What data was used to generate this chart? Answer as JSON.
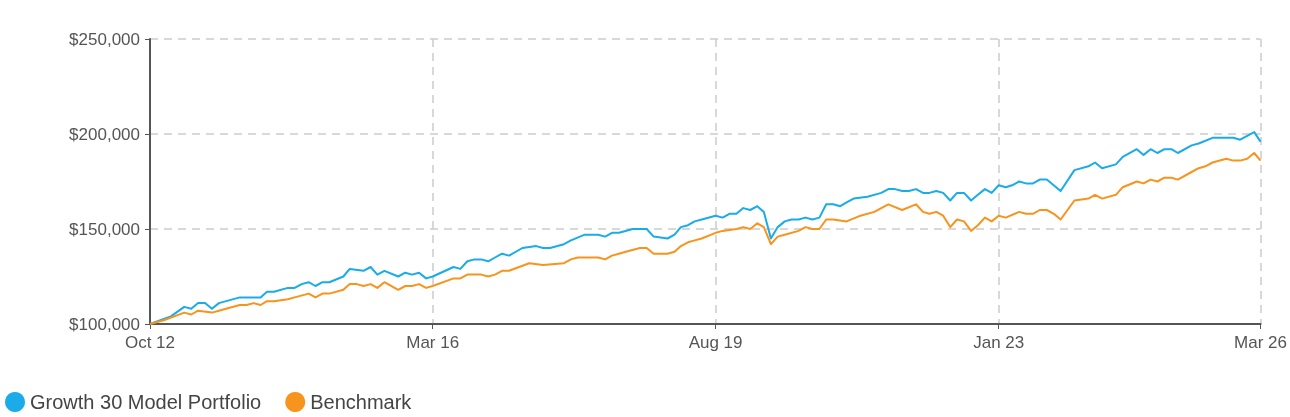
{
  "chart_data": {
    "type": "line",
    "xlim": [
      "2012-10",
      "2026-03"
    ],
    "xticks": [
      {
        "value": "2012-10",
        "label": "Oct 12"
      },
      {
        "value": "2016-03",
        "label": "Mar 16"
      },
      {
        "value": "2019-08",
        "label": "Aug 19"
      },
      {
        "value": "2023-01",
        "label": "Jan 23"
      },
      {
        "value": "2026-03",
        "label": "Mar 26"
      }
    ],
    "ylim": [
      100000,
      250000
    ],
    "yticks": [
      {
        "value": 100000,
        "label": "$100,000"
      },
      {
        "value": 150000,
        "label": "$150,000"
      },
      {
        "value": 200000,
        "label": "$200,000"
      },
      {
        "value": 250000,
        "label": "$250,000"
      }
    ],
    "grid": true,
    "legend": "bottom left",
    "marker": "none",
    "line_style": "solid",
    "series": [
      {
        "name": "Growth 30 Model Portfolio",
        "color": "#1aabe8",
        "x": [
          "2012-10",
          "2013-01",
          "2013-03",
          "2013-04",
          "2013-05",
          "2013-06",
          "2013-07",
          "2013-08",
          "2013-11",
          "2014-02",
          "2014-03",
          "2014-04",
          "2014-06",
          "2014-07",
          "2014-08",
          "2014-09",
          "2014-10",
          "2014-11",
          "2014-12",
          "2015-02",
          "2015-03",
          "2015-05",
          "2015-06",
          "2015-07",
          "2015-08",
          "2015-10",
          "2015-11",
          "2015-12",
          "2016-01",
          "2016-02",
          "2016-03",
          "2016-06",
          "2016-07",
          "2016-08",
          "2016-09",
          "2016-10",
          "2016-11",
          "2016-12",
          "2017-01",
          "2017-02",
          "2017-04",
          "2017-06",
          "2017-07",
          "2017-08",
          "2017-10",
          "2017-11",
          "2018-01",
          "2018-03",
          "2018-04",
          "2018-05",
          "2018-06",
          "2018-08",
          "2018-10",
          "2018-11",
          "2019-01",
          "2019-02",
          "2019-03",
          "2019-04",
          "2019-05",
          "2019-06",
          "2019-08",
          "2019-09",
          "2019-10",
          "2019-11",
          "2019-12",
          "2020-01",
          "2020-02",
          "2020-03",
          "2020-04",
          "2020-05",
          "2020-06",
          "2020-07",
          "2020-08",
          "2020-09",
          "2020-10",
          "2020-11",
          "2020-12",
          "2021-01",
          "2021-02",
          "2021-03",
          "2021-04",
          "2021-06",
          "2021-08",
          "2021-09",
          "2021-10",
          "2021-11",
          "2021-12",
          "2022-01",
          "2022-02",
          "2022-03",
          "2022-04",
          "2022-05",
          "2022-06",
          "2022-07",
          "2022-08",
          "2022-09",
          "2022-10",
          "2022-11",
          "2022-12",
          "2023-01",
          "2023-02",
          "2023-03",
          "2023-04",
          "2023-05",
          "2023-06",
          "2023-07",
          "2023-08",
          "2023-10",
          "2023-12",
          "2024-02",
          "2024-03",
          "2024-04",
          "2024-06",
          "2024-07",
          "2024-09",
          "2024-10",
          "2024-11",
          "2024-12",
          "2025-01",
          "2025-02",
          "2025-03",
          "2025-05",
          "2025-06",
          "2025-08",
          "2025-09",
          "2025-10",
          "2025-11",
          "2025-12",
          "2026-02",
          "2026-03"
        ],
        "values": [
          100000,
          104000,
          109000,
          108000,
          111000,
          111000,
          108000,
          111000,
          114000,
          114000,
          117000,
          117000,
          119000,
          119000,
          121000,
          122000,
          120000,
          122000,
          122000,
          125000,
          129000,
          128000,
          130000,
          126000,
          128000,
          125000,
          127000,
          126000,
          127000,
          124000,
          125000,
          130000,
          129000,
          133000,
          134000,
          134000,
          133000,
          135000,
          137000,
          136000,
          140000,
          141000,
          140000,
          140000,
          142000,
          144000,
          147000,
          147000,
          146000,
          148000,
          148000,
          150000,
          150000,
          146000,
          145000,
          147000,
          151000,
          152000,
          154000,
          155000,
          157000,
          156000,
          158000,
          158000,
          161000,
          160000,
          162000,
          159000,
          145000,
          151000,
          154000,
          155000,
          155000,
          156000,
          155000,
          156000,
          163000,
          163000,
          162000,
          164000,
          166000,
          167000,
          169000,
          171000,
          171000,
          170000,
          170000,
          171000,
          169000,
          169000,
          170000,
          169000,
          165000,
          169000,
          169000,
          165000,
          168000,
          171000,
          169000,
          173000,
          172000,
          173000,
          175000,
          174000,
          174000,
          176000,
          176000,
          170000,
          181000,
          183000,
          185000,
          182000,
          184000,
          188000,
          192000,
          189000,
          192000,
          190000,
          192000,
          192000,
          190000,
          194000,
          195000,
          198000,
          198000,
          198000,
          198000,
          197000,
          201000,
          196000
        ]
      },
      {
        "name": "Benchmark",
        "color": "#f7941d",
        "x": [
          "2012-10",
          "2012-12",
          "2013-03",
          "2013-04",
          "2013-05",
          "2013-07",
          "2013-08",
          "2013-09",
          "2013-11",
          "2013-12",
          "2014-01",
          "2014-02",
          "2014-03",
          "2014-04",
          "2014-06",
          "2014-07",
          "2014-09",
          "2014-10",
          "2014-11",
          "2014-12",
          "2015-02",
          "2015-03",
          "2015-04",
          "2015-05",
          "2015-06",
          "2015-07",
          "2015-08",
          "2015-10",
          "2015-11",
          "2015-12",
          "2016-01",
          "2016-02",
          "2016-03",
          "2016-06",
          "2016-07",
          "2016-08",
          "2016-10",
          "2016-11",
          "2016-12",
          "2017-01",
          "2017-02",
          "2017-05",
          "2017-07",
          "2017-10",
          "2017-11",
          "2017-12",
          "2018-03",
          "2018-04",
          "2018-05",
          "2018-06",
          "2018-07",
          "2018-09",
          "2018-10",
          "2018-11",
          "2018-12",
          "2019-01",
          "2019-02",
          "2019-03",
          "2019-04",
          "2019-05",
          "2019-06",
          "2019-08",
          "2019-09",
          "2019-11",
          "2019-12",
          "2020-01",
          "2020-02",
          "2020-03",
          "2020-04",
          "2020-05",
          "2020-06",
          "2020-08",
          "2020-09",
          "2020-10",
          "2020-11",
          "2020-12",
          "2021-01",
          "2021-03",
          "2021-05",
          "2021-07",
          "2021-09",
          "2021-11",
          "2022-01",
          "2022-02",
          "2022-03",
          "2022-04",
          "2022-05",
          "2022-06",
          "2022-07",
          "2022-08",
          "2022-09",
          "2022-10",
          "2022-11",
          "2022-12",
          "2023-01",
          "2023-02",
          "2023-04",
          "2023-05",
          "2023-06",
          "2023-07",
          "2023-08",
          "2023-09",
          "2023-10",
          "2023-12",
          "2024-02",
          "2024-03",
          "2024-04",
          "2024-06",
          "2024-07",
          "2024-09",
          "2024-10",
          "2024-11",
          "2024-12",
          "2025-01",
          "2025-02",
          "2025-03",
          "2025-05",
          "2025-06",
          "2025-07",
          "2025-08",
          "2025-10",
          "2025-11",
          "2025-12",
          "2026-01",
          "2026-02",
          "2026-03"
        ],
        "values": [
          100000,
          102000,
          106000,
          105000,
          107000,
          106000,
          107000,
          108000,
          110000,
          110000,
          111000,
          110000,
          112000,
          112000,
          113000,
          114000,
          116000,
          114000,
          116000,
          116000,
          118000,
          121000,
          121000,
          120000,
          121000,
          119000,
          122000,
          118000,
          120000,
          120000,
          121000,
          119000,
          120000,
          124000,
          124000,
          126000,
          126000,
          125000,
          126000,
          128000,
          128000,
          132000,
          131000,
          132000,
          134000,
          135000,
          135000,
          134000,
          136000,
          137000,
          138000,
          140000,
          140000,
          137000,
          137000,
          137000,
          138000,
          141000,
          143000,
          144000,
          145000,
          148000,
          149000,
          150000,
          151000,
          150000,
          153000,
          151000,
          142000,
          146000,
          147000,
          149000,
          151000,
          150000,
          150000,
          155000,
          155000,
          154000,
          157000,
          159000,
          163000,
          160000,
          163000,
          159000,
          158000,
          159000,
          157000,
          151000,
          155000,
          154000,
          149000,
          152000,
          156000,
          154000,
          157000,
          156000,
          159000,
          158000,
          158000,
          160000,
          160000,
          158000,
          155000,
          165000,
          166000,
          168000,
          166000,
          168000,
          172000,
          175000,
          174000,
          176000,
          175000,
          177000,
          177000,
          176000,
          180000,
          182000,
          183000,
          185000,
          187000,
          186000,
          186000,
          187000,
          190000,
          186000
        ]
      }
    ]
  }
}
